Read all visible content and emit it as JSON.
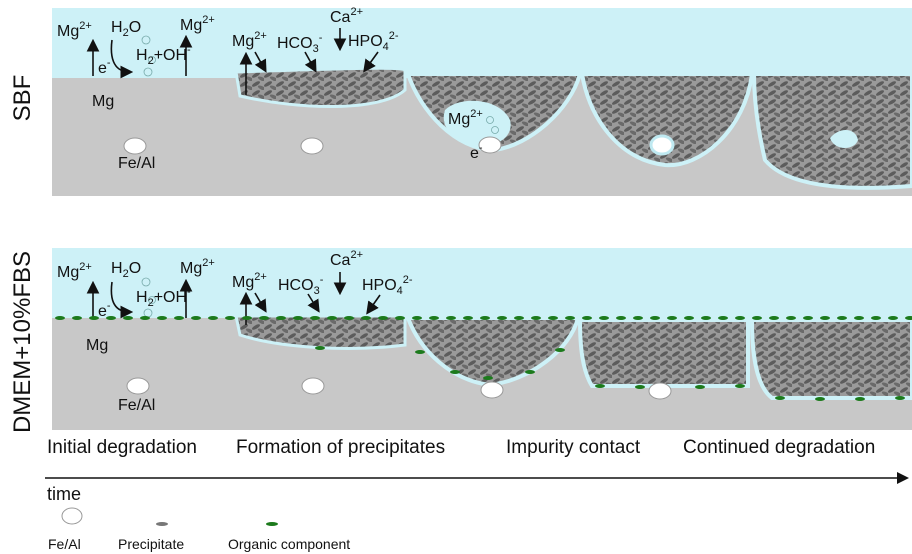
{
  "rows": [
    {
      "label": "SBF",
      "species": [
        {
          "base": "Mg",
          "sup": "2+"
        },
        {
          "base": "H",
          "sub": "2",
          "rest": "O"
        },
        {
          "base": "Mg",
          "sup": "2+"
        },
        {
          "base": "e",
          "sup": "-"
        },
        {
          "base": "H",
          "sub": "2",
          "rest": "+OH",
          "sup": "-"
        },
        {
          "base": "Mg"
        },
        {
          "base": "Fe/Al"
        },
        {
          "base": "Mg",
          "sup": "2+"
        },
        {
          "base": "HCO",
          "sub": "3",
          "sup": "-"
        },
        {
          "base": "Ca",
          "sup": "2+"
        },
        {
          "base": "HPO",
          "sub": "4",
          "sup": "2-"
        },
        {
          "base": "Mg",
          "sup": "2+"
        },
        {
          "base": "e",
          "sup": "-"
        }
      ]
    },
    {
      "label": "DMEM+10%FBS",
      "species": [
        {
          "base": "Mg",
          "sup": "2+"
        },
        {
          "base": "H",
          "sub": "2",
          "rest": "O"
        },
        {
          "base": "Mg",
          "sup": "2+"
        },
        {
          "base": "e",
          "sup": "-"
        },
        {
          "base": "H",
          "sub": "2",
          "rest": "+OH",
          "sup": "-"
        },
        {
          "base": "Mg"
        },
        {
          "base": "Fe/Al"
        },
        {
          "base": "Mg",
          "sup": "2+"
        },
        {
          "base": "HCO",
          "sub": "3",
          "sup": "-"
        },
        {
          "base": "Ca",
          "sup": "2+"
        },
        {
          "base": "HPO",
          "sub": "4",
          "sup": "2-"
        }
      ]
    }
  ],
  "stages": [
    "Initial degradation",
    "Formation of precipitates",
    "Impurity contact",
    "Continued degradation"
  ],
  "axis_label": "time",
  "legend": [
    "Fe/Al",
    "Precipitate",
    "Organic component"
  ]
}
